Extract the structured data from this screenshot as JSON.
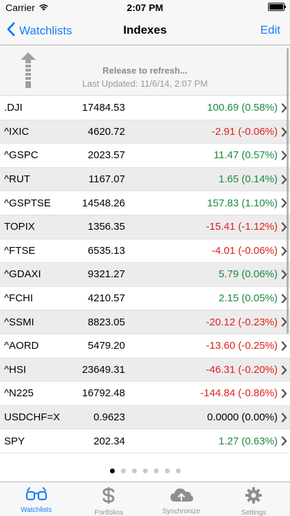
{
  "status_bar": {
    "carrier": "Carrier",
    "time": "2:07 PM"
  },
  "nav": {
    "back_label": "Watchlists",
    "title": "Indexes",
    "edit_label": "Edit"
  },
  "refresh": {
    "message": "Release to refresh...",
    "last_updated": "Last Updated: 11/6/14, 2:07 PM"
  },
  "colors": {
    "accent": "#147efb",
    "up": "#1b8a3a",
    "down": "#e0201c"
  },
  "rows": [
    {
      "symbol": ".DJI",
      "price": "17484.53",
      "change": "100.69 (0.58%)",
      "dir": "up"
    },
    {
      "symbol": "^IXIC",
      "price": "4620.72",
      "change": "-2.91 (-0.06%)",
      "dir": "down"
    },
    {
      "symbol": "^GSPC",
      "price": "2023.57",
      "change": "11.47 (0.57%)",
      "dir": "up"
    },
    {
      "symbol": "^RUT",
      "price": "1167.07",
      "change": "1.65 (0.14%)",
      "dir": "up"
    },
    {
      "symbol": "^GSPTSE",
      "price": "14548.26",
      "change": "157.83 (1.10%)",
      "dir": "up"
    },
    {
      "symbol": "TOPIX",
      "price": "1356.35",
      "change": "-15.41 (-1.12%)",
      "dir": "down"
    },
    {
      "symbol": "^FTSE",
      "price": "6535.13",
      "change": "-4.01 (-0.06%)",
      "dir": "down"
    },
    {
      "symbol": "^GDAXI",
      "price": "9321.27",
      "change": "5.79 (0.06%)",
      "dir": "up"
    },
    {
      "symbol": "^FCHI",
      "price": "4210.57",
      "change": "2.15 (0.05%)",
      "dir": "up"
    },
    {
      "symbol": "^SSMI",
      "price": "8823.05",
      "change": "-20.12 (-0.23%)",
      "dir": "down"
    },
    {
      "symbol": "^AORD",
      "price": "5479.20",
      "change": "-13.60 (-0.25%)",
      "dir": "down"
    },
    {
      "symbol": "^HSI",
      "price": "23649.31",
      "change": "-46.31 (-0.20%)",
      "dir": "down"
    },
    {
      "symbol": "^N225",
      "price": "16792.48",
      "change": "-144.84 (-0.86%)",
      "dir": "down"
    },
    {
      "symbol": "USDCHF=X",
      "price": "0.9623",
      "change": "0.0000 (0.00%)",
      "dir": "flat"
    },
    {
      "symbol": "SPY",
      "price": "202.34",
      "change": "1.27 (0.63%)",
      "dir": "up"
    }
  ],
  "page_dots": {
    "count": 7,
    "active_index": 0
  },
  "tabs": [
    {
      "label": "Watchlists",
      "icon": "glasses-icon",
      "active": true
    },
    {
      "label": "Portfolios",
      "icon": "dollar-icon",
      "active": false
    },
    {
      "label": "Synchronize",
      "icon": "cloud-upload-icon",
      "active": false
    },
    {
      "label": "Settings",
      "icon": "gear-icon",
      "active": false
    }
  ]
}
